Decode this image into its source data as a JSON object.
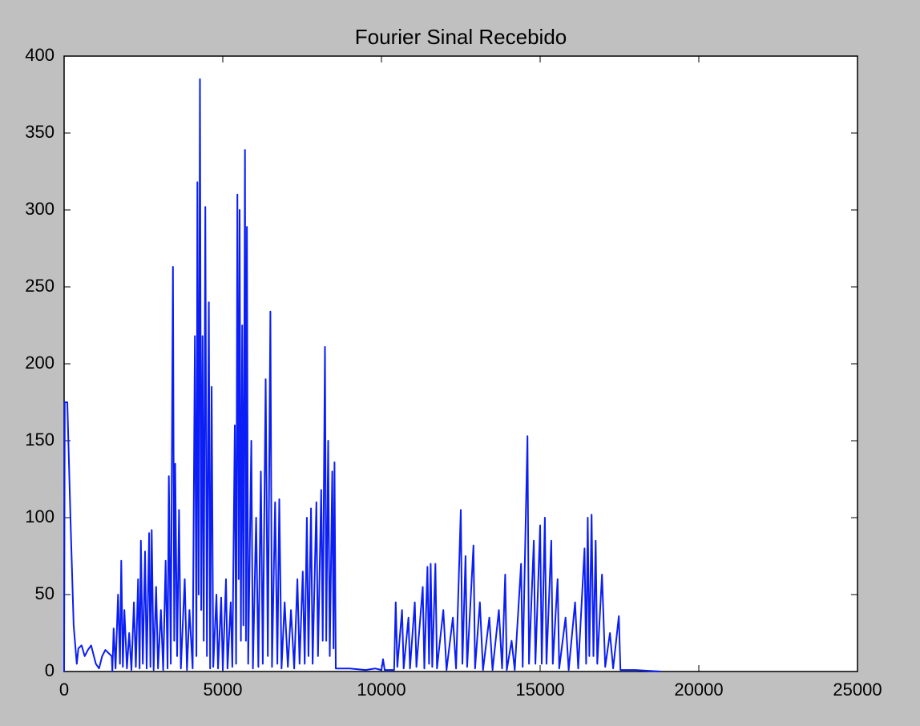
{
  "chart_data": {
    "type": "line",
    "title": "Fourier Sinal Recebido",
    "color": "#0a1ef5",
    "x": [
      0,
      20,
      100,
      200,
      300,
      400,
      450,
      550,
      650,
      750,
      850,
      1000,
      1100,
      1200,
      1300,
      1400,
      1500,
      1520,
      1560,
      1620,
      1700,
      1760,
      1800,
      1850,
      1900,
      1980,
      2050,
      2120,
      2200,
      2260,
      2330,
      2380,
      2420,
      2480,
      2550,
      2600,
      2680,
      2720,
      2760,
      2820,
      2900,
      2960,
      3050,
      3120,
      3200,
      3260,
      3300,
      3360,
      3430,
      3470,
      3500,
      3560,
      3620,
      3680,
      3800,
      3870,
      3950,
      4050,
      4120,
      4170,
      4200,
      4240,
      4280,
      4320,
      4360,
      4400,
      4450,
      4500,
      4560,
      4600,
      4650,
      4700,
      4800,
      4850,
      4950,
      5000,
      5100,
      5150,
      5250,
      5300,
      5380,
      5420,
      5460,
      5500,
      5530,
      5570,
      5610,
      5650,
      5700,
      5730,
      5760,
      5800,
      5900,
      5950,
      6050,
      6120,
      6200,
      6260,
      6350,
      6420,
      6500,
      6550,
      6650,
      6720,
      6780,
      6850,
      6950,
      7050,
      7150,
      7250,
      7350,
      7420,
      7520,
      7580,
      7650,
      7700,
      7780,
      7830,
      7950,
      8000,
      8100,
      8150,
      8220,
      8260,
      8320,
      8370,
      8450,
      8490,
      8520,
      8560,
      9000,
      9500,
      9800,
      10000,
      10050,
      10100,
      10400,
      10450,
      10500,
      10650,
      10700,
      10850,
      10900,
      11050,
      11100,
      11300,
      11350,
      11450,
      11500,
      11550,
      11600,
      11700,
      11750,
      11950,
      12050,
      12250,
      12350,
      12500,
      12550,
      12650,
      12700,
      12900,
      12950,
      13100,
      13200,
      13400,
      13500,
      13700,
      13800,
      13900,
      13950,
      14100,
      14200,
      14400,
      14450,
      14600,
      14650,
      14800,
      14850,
      15000,
      15050,
      15150,
      15200,
      15350,
      15400,
      15550,
      15600,
      15800,
      15900,
      16100,
      16200,
      16400,
      16450,
      16500,
      16550,
      16620,
      16680,
      16750,
      16800,
      16950,
      17050,
      17200,
      17300,
      17480,
      17530,
      18000,
      18800
    ],
    "values": [
      0,
      175,
      175,
      100,
      30,
      5,
      15,
      17,
      10,
      14,
      17,
      5,
      2,
      10,
      14,
      12,
      10,
      0,
      28,
      2,
      50,
      5,
      72,
      3,
      40,
      2,
      25,
      1,
      45,
      3,
      60,
      2,
      85,
      5,
      78,
      2,
      90,
      3,
      92,
      1,
      55,
      2,
      40,
      1,
      72,
      2,
      127,
      5,
      263,
      20,
      135,
      10,
      105,
      2,
      60,
      1,
      40,
      2,
      218,
      10,
      318,
      50,
      385,
      40,
      218,
      20,
      302,
      10,
      240,
      2,
      185,
      3,
      50,
      2,
      48,
      1,
      60,
      2,
      45,
      3,
      160,
      5,
      310,
      60,
      300,
      20,
      225,
      30,
      339,
      20,
      289,
      5,
      150,
      2,
      100,
      3,
      130,
      5,
      190,
      10,
      234,
      3,
      110,
      5,
      112,
      2,
      45,
      3,
      40,
      2,
      60,
      5,
      65,
      5,
      100,
      10,
      106,
      5,
      110,
      10,
      118,
      20,
      211,
      20,
      150,
      10,
      130,
      15,
      136,
      2,
      2,
      1,
      2,
      1,
      8,
      1,
      1,
      45,
      3,
      40,
      2,
      35,
      2,
      45,
      3,
      55,
      2,
      68,
      5,
      70,
      3,
      70,
      2,
      40,
      1,
      35,
      2,
      105,
      5,
      75,
      3,
      82,
      2,
      45,
      1,
      35,
      1,
      40,
      2,
      63,
      1,
      20,
      1,
      70,
      3,
      153,
      5,
      85,
      5,
      95,
      5,
      100,
      5,
      85,
      5,
      60,
      2,
      35,
      1,
      45,
      2,
      80,
      5,
      100,
      10,
      102,
      10,
      85,
      5,
      63,
      3,
      25,
      2,
      36,
      1,
      1,
      0
    ],
    "xlim": [
      0,
      25000
    ],
    "xticks": [
      0,
      5000,
      10000,
      15000,
      20000,
      25000
    ],
    "ylim": [
      0,
      400
    ],
    "yticks": [
      0,
      50,
      100,
      150,
      200,
      250,
      300,
      350,
      400
    ]
  }
}
